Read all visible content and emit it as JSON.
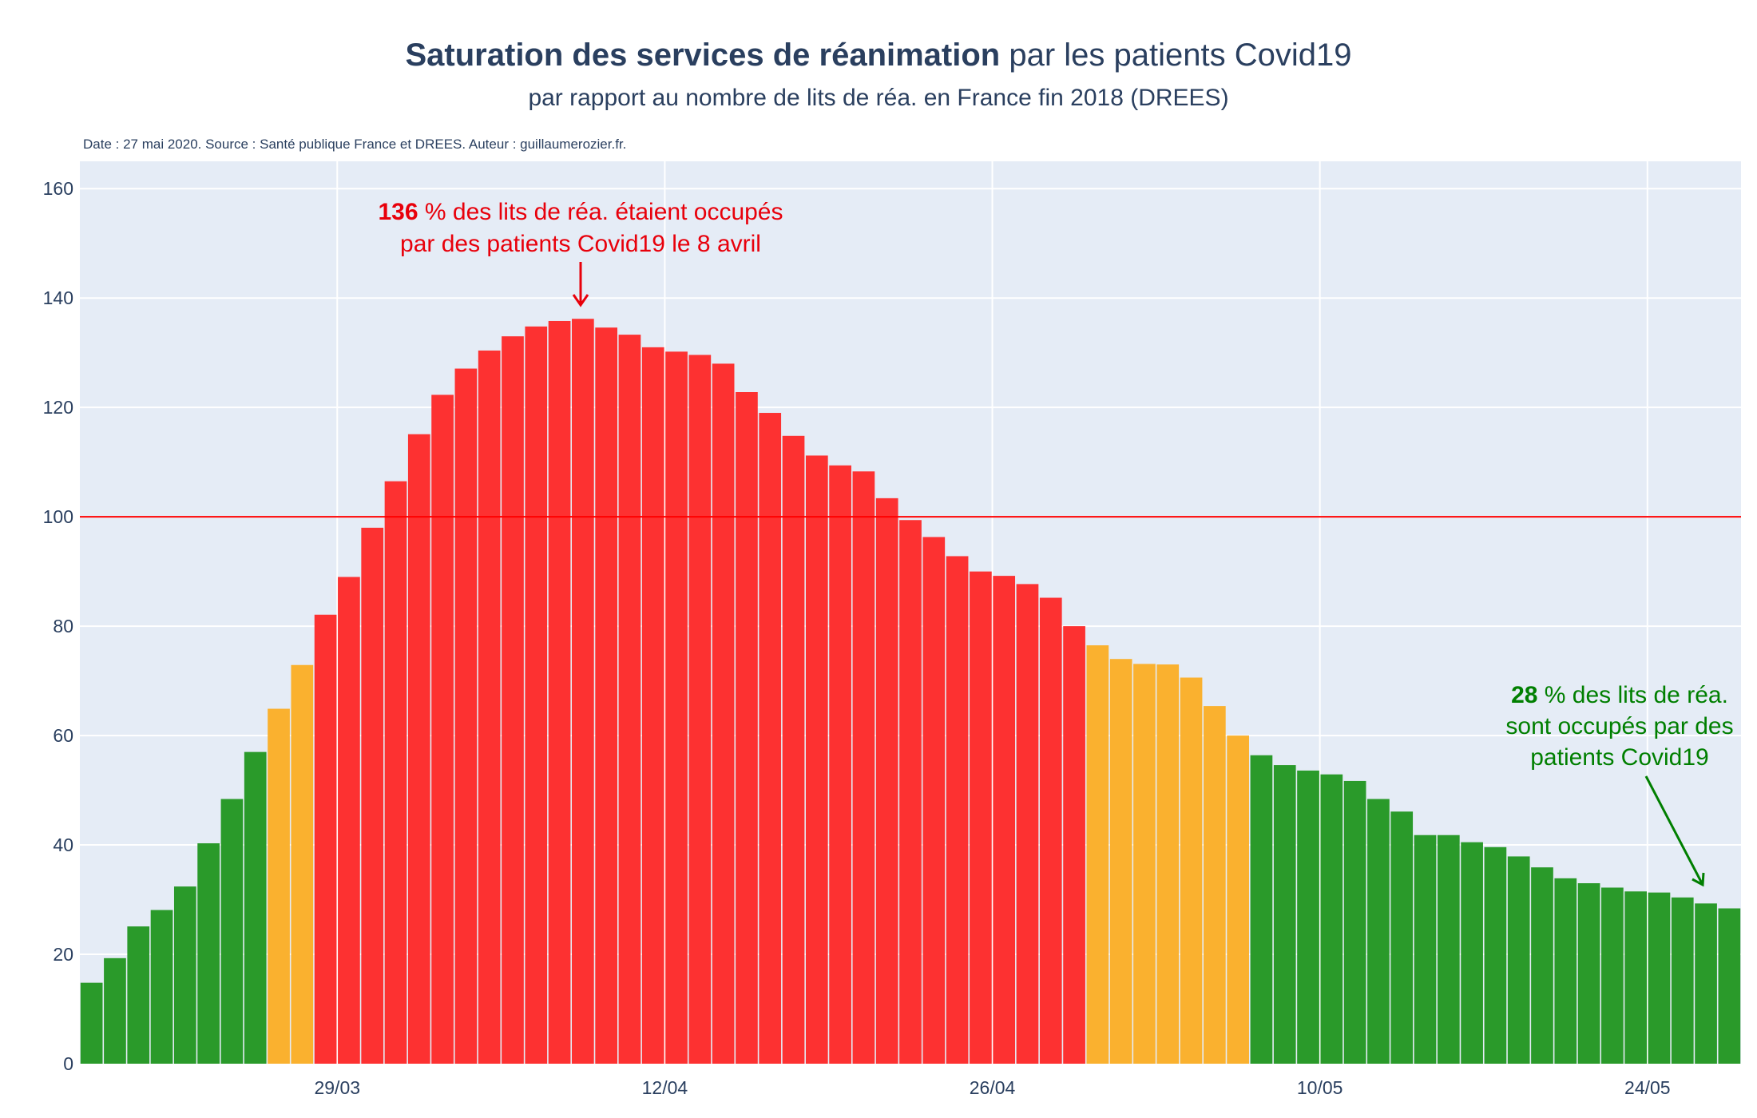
{
  "title_bold": "Saturation des services de réanimation",
  "title_rest": " par les patients Covid19",
  "subtitle": "par rapport au nombre de lits de réa. en France fin 2018 (DREES)",
  "source_note": "Date : 27 mai 2020. Source : Santé publique France et DREES. Auteur : guillaumerozier.fr.",
  "colors": {
    "green": "#2a9a2a",
    "orange": "#fab12f",
    "red": "#fd3131",
    "plot_bg": "#e5ecf6",
    "grid": "#ffffff",
    "reference_line": "#ff0000",
    "annotation_red": "#e8000b",
    "annotation_green": "#007f00",
    "text": "#2a3f5f"
  },
  "annotations": {
    "peak": {
      "bold": "136",
      "line1_rest": " % des lits de réa. étaient occupés",
      "line2": "par des patients Covid19 le 8 avril"
    },
    "latest": {
      "bold": "28",
      "line1_rest": " % des lits de réa.",
      "line2": "sont occupés par des",
      "line3": "patients Covid19"
    }
  },
  "chart_data": {
    "type": "bar",
    "title": "Saturation des services de réanimation par les patients Covid19",
    "subtitle": "par rapport au nombre de lits de réa. en France fin 2018 (DREES)",
    "x_start": "2020-03-18",
    "x_end": "2020-05-28",
    "x_tick_labels": [
      "29/03",
      "12/04",
      "26/04",
      "10/05",
      "24/05"
    ],
    "x_tick_dates": [
      "2020-03-29",
      "2020-04-12",
      "2020-04-26",
      "2020-05-10",
      "2020-05-24"
    ],
    "ylim": [
      0,
      165
    ],
    "y_ticks": [
      0,
      20,
      40,
      60,
      80,
      100,
      120,
      140,
      160
    ],
    "reference_line_y": 100,
    "grid": true,
    "values": [
      14.8,
      19.3,
      25.1,
      28.1,
      32.4,
      40.3,
      48.4,
      57.0,
      64.9,
      72.9,
      82.1,
      89.0,
      98.0,
      106.5,
      115.1,
      122.3,
      127.1,
      130.4,
      133.0,
      134.8,
      135.8,
      136.2,
      134.6,
      133.3,
      131.0,
      130.2,
      129.6,
      128.0,
      122.8,
      119.0,
      114.8,
      111.2,
      109.4,
      108.3,
      103.4,
      99.4,
      96.3,
      92.8,
      90.0,
      89.2,
      87.7,
      85.2,
      80.0,
      76.5,
      74.0,
      73.1,
      73.0,
      70.6,
      65.4,
      60.0,
      56.4,
      54.6,
      53.6,
      52.9,
      51.7,
      48.4,
      46.1,
      41.8,
      41.8,
      40.5,
      39.6,
      37.9,
      35.9,
      33.9,
      33.0,
      32.2,
      31.5,
      31.3,
      30.4,
      29.3,
      28.4
    ]
  }
}
